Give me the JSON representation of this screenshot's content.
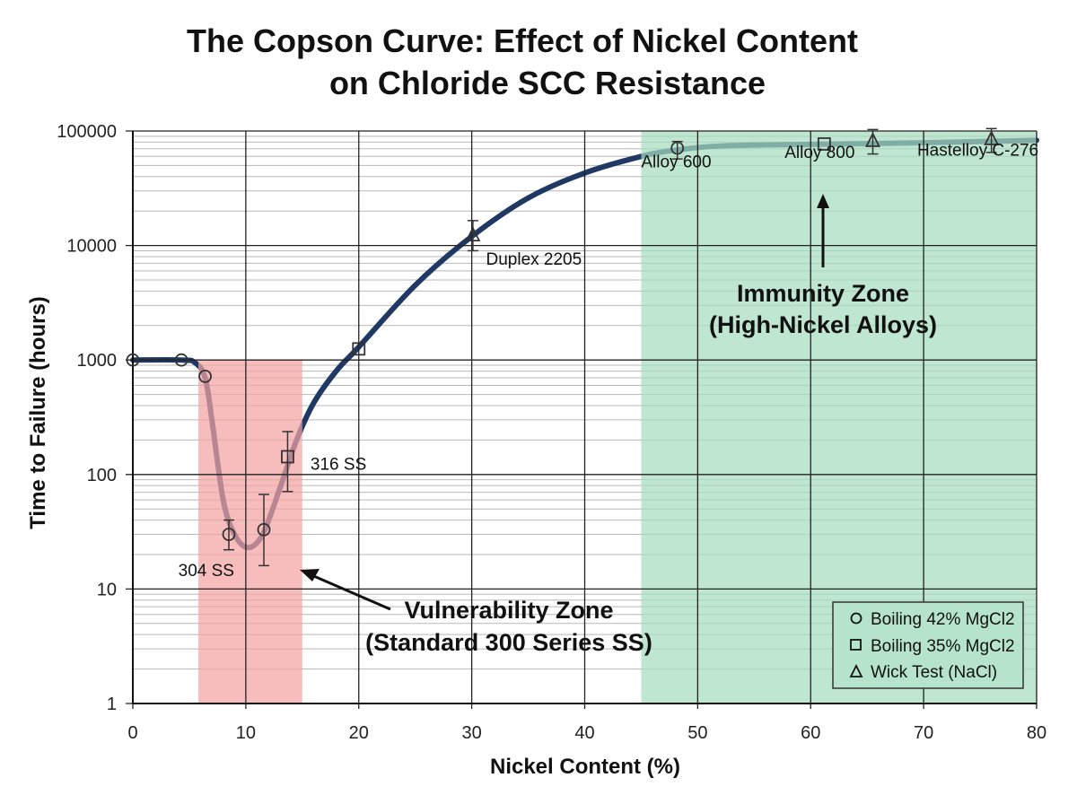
{
  "chart_data": {
    "type": "line",
    "title": [
      "The Copson Curve: Effect of Nickel Content",
      "on Chloride SCC Resistance"
    ],
    "xlabel": "Nickel Content (%)",
    "ylabel": "Time to Failure (hours)",
    "xlim": [
      0,
      80
    ],
    "ylim": [
      1,
      100000
    ],
    "yscale": "log",
    "grid": true,
    "xticks": [
      0,
      10,
      20,
      30,
      40,
      50,
      60,
      70,
      80
    ],
    "yticks": [
      1,
      10,
      100,
      1000,
      10000,
      100000
    ],
    "ytick_labels": [
      "1",
      "10",
      "100",
      "1000",
      "10000",
      "100000"
    ],
    "curve": {
      "color": "#1f3864",
      "x": [
        0,
        4.3,
        5.5,
        6.4,
        7,
        8,
        9,
        10.2,
        11.5,
        13,
        14.5,
        16,
        18,
        20,
        25,
        30,
        35,
        40,
        45,
        48,
        52,
        60,
        70,
        80
      ],
      "y": [
        1000,
        1000,
        950,
        700,
        300,
        60,
        30,
        23,
        30,
        75,
        200,
        420,
        800,
        1300,
        4500,
        12000,
        26000,
        43000,
        60000,
        68000,
        74000,
        76500,
        79000,
        83000
      ]
    },
    "series": [
      {
        "name": "Boiling 42% MgCl2",
        "marker": "circle",
        "points": [
          {
            "x": 0,
            "y": 1000
          },
          {
            "x": 4.3,
            "y": 1000
          },
          {
            "x": 6.4,
            "y": 720
          },
          {
            "x": 8.5,
            "y": 30,
            "err": [
              22,
              40
            ]
          },
          {
            "x": 11.6,
            "y": 33,
            "err": [
              16,
              67
            ]
          },
          {
            "x": 48.2,
            "y": 71000,
            "err": [
              57000,
              81000
            ]
          }
        ]
      },
      {
        "name": "Boiling 35% MgCl2",
        "marker": "square",
        "points": [
          {
            "x": 13.7,
            "y": 143,
            "err": [
              71,
              237
            ]
          },
          {
            "x": 20,
            "y": 1250
          },
          {
            "x": 61.2,
            "y": 77000
          }
        ]
      },
      {
        "name": "Wick Test (NaCl)",
        "marker": "triangle",
        "points": [
          {
            "x": 30.1,
            "y": 12300,
            "err": [
              9000,
              16500
            ]
          },
          {
            "x": 65.5,
            "y": 82000,
            "err": [
              63000,
              103000
            ]
          },
          {
            "x": 76,
            "y": 85000,
            "err": [
              65000,
              105000
            ]
          }
        ]
      }
    ],
    "point_labels": [
      {
        "text": "304 SS",
        "x": 6.5,
        "y": 13
      },
      {
        "text": "316 SS",
        "x": 18.2,
        "y": 110
      },
      {
        "text": "Duplex 2205",
        "x": 35.5,
        "y": 6800
      },
      {
        "text": "Alloy 600",
        "x": 48.1,
        "y": 48000
      },
      {
        "text": "Alloy 800",
        "x": 60.8,
        "y": 58000
      },
      {
        "text": "Hastelloy C-276",
        "x": 74.8,
        "y": 61000
      }
    ],
    "zones": [
      {
        "name": "Vulnerability Zone",
        "x": [
          5.8,
          15
        ],
        "y": [
          1,
          1000
        ],
        "color": "#f4a3a3"
      },
      {
        "name": "Immunity Zone",
        "x": [
          45,
          80
        ],
        "y": [
          1,
          100000
        ],
        "color": "#a6dcbf"
      }
    ],
    "annotations": {
      "vulnerability": [
        "Vulnerability Zone",
        "(Standard 300 Series SS)"
      ],
      "immunity": [
        "Immunity Zone",
        "(High-Nickel Alloys)"
      ]
    },
    "legend": {
      "position": "bottom-right",
      "entries": [
        "Boiling 42% MgCl2",
        "Boiling 35% MgCl2",
        "Wick Test (NaCl)"
      ]
    }
  }
}
